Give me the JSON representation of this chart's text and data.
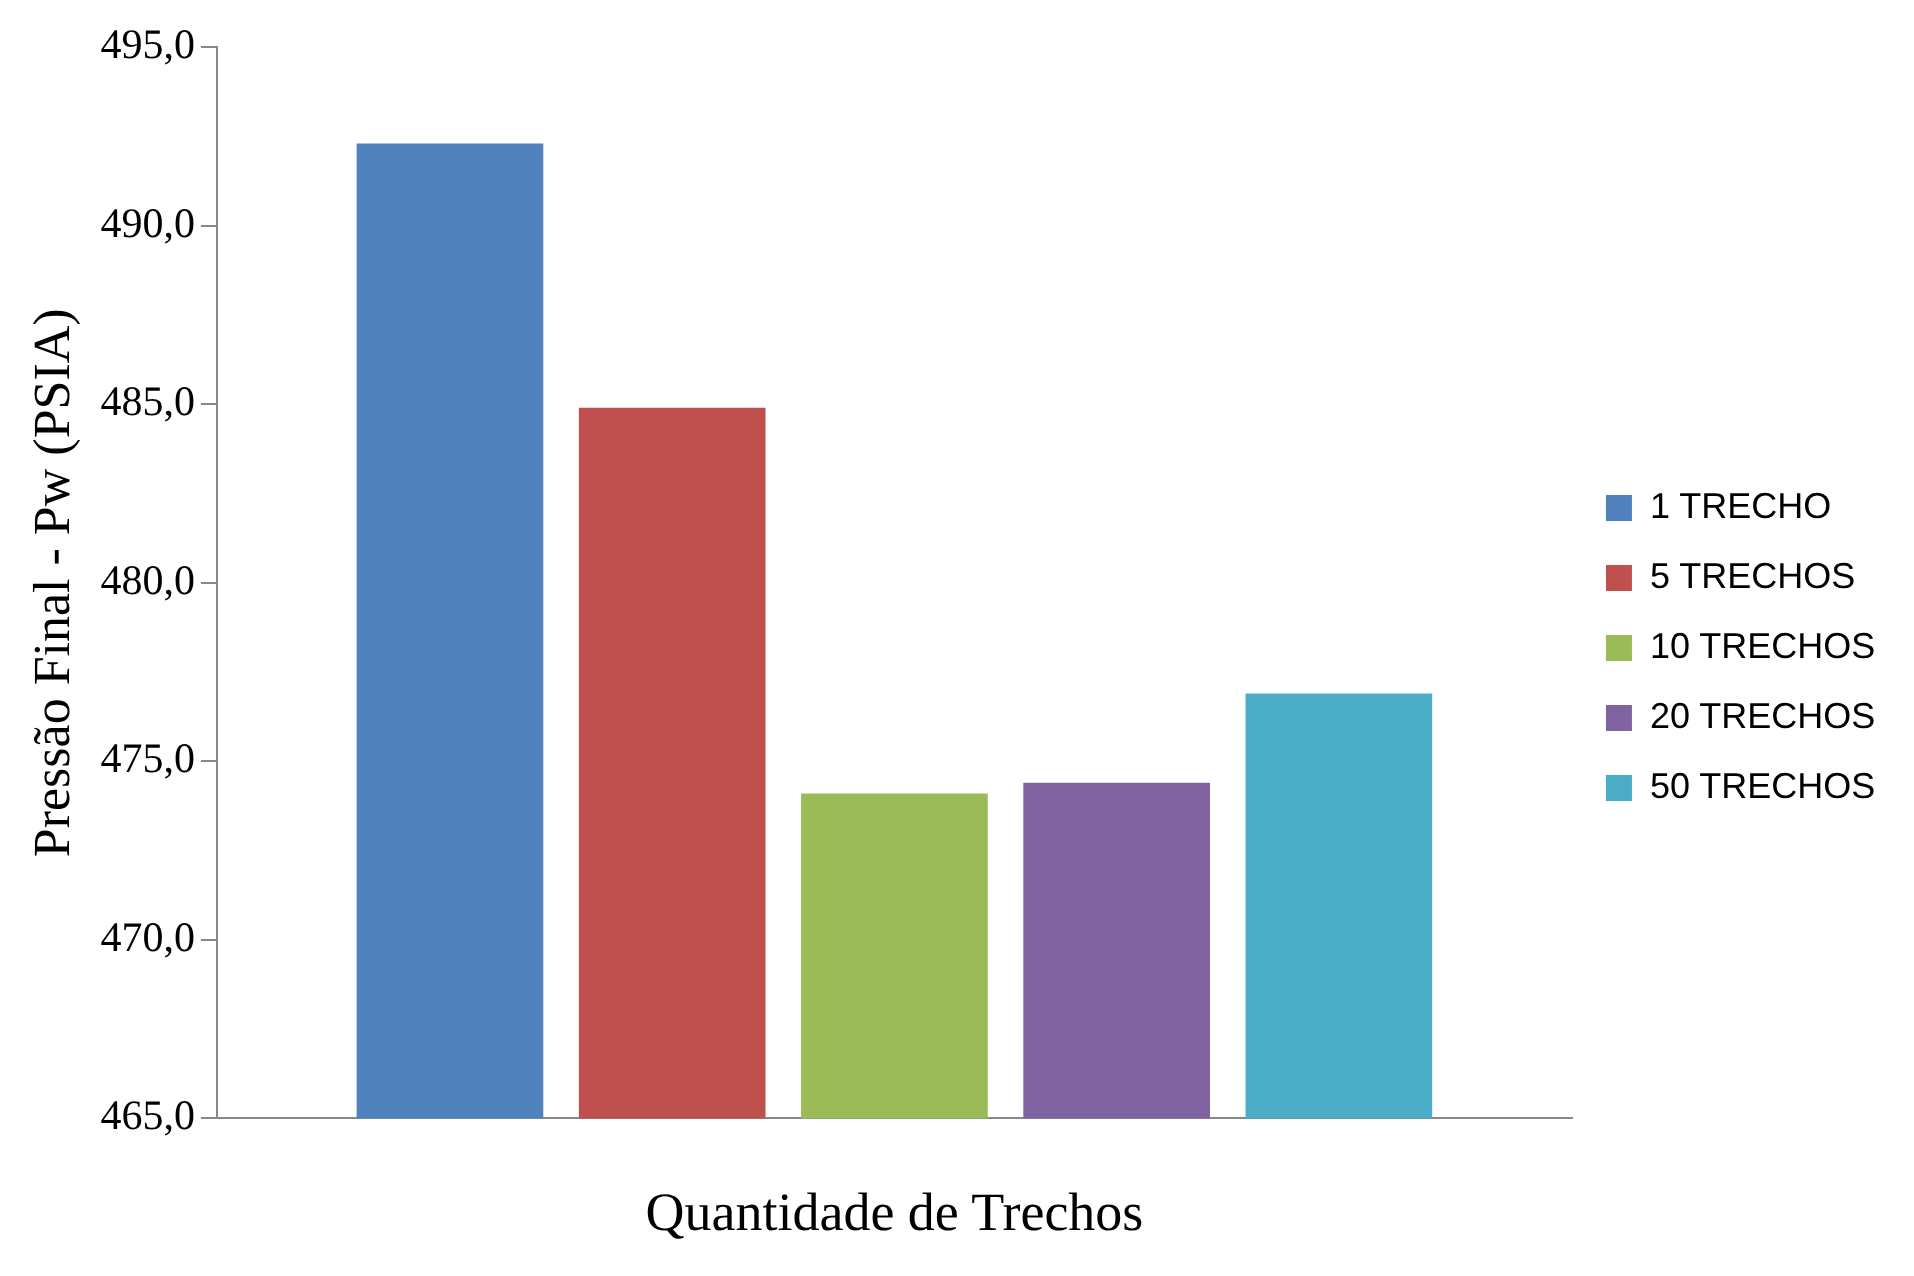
{
  "chart_data": {
    "type": "bar",
    "xlabel": "Quantidade de Trechos",
    "ylabel": "Pressão Final - Pw (PSIA)",
    "categories": [
      null
    ],
    "series": [
      {
        "name": "1 TRECHO",
        "color": "#4f81bd",
        "values": [
          492.3
        ]
      },
      {
        "name": "5 TRECHOS",
        "color": "#c0504d",
        "values": [
          484.9
        ]
      },
      {
        "name": "10 TRECHOS",
        "color": "#9bbb59",
        "values": [
          474.1
        ]
      },
      {
        "name": "20 TRECHOS",
        "color": "#8064a2",
        "values": [
          474.4
        ]
      },
      {
        "name": "50 TRECHOS",
        "color": "#4bacc6",
        "values": [
          476.9
        ]
      }
    ],
    "ylim": [
      465,
      495
    ],
    "yticks": [
      {
        "value": 465,
        "label": "465,0"
      },
      {
        "value": 470,
        "label": "470,0"
      },
      {
        "value": 475,
        "label": "475,0"
      },
      {
        "value": 480,
        "label": "480,0"
      },
      {
        "value": 485,
        "label": "485,0"
      },
      {
        "value": 490,
        "label": "490,0"
      },
      {
        "value": 495,
        "label": "495,0"
      }
    ],
    "grid": false,
    "legend": "right"
  }
}
